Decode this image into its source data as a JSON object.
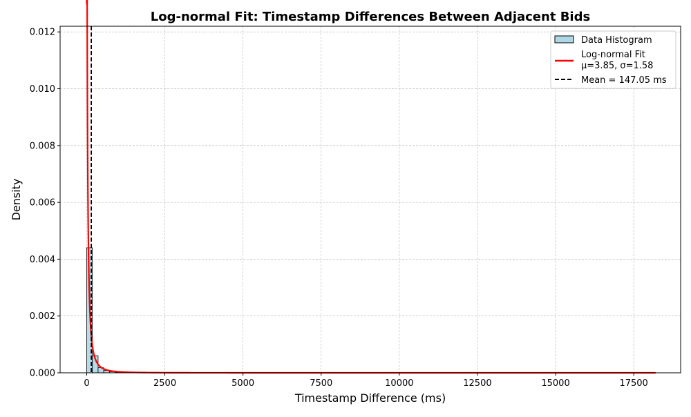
{
  "chart_data": {
    "type": "histogram",
    "title": "Log-normal Fit: Timestamp Differences Between Adjacent Bids",
    "xlabel": "Timestamp Difference (ms)",
    "ylabel": "Density",
    "xlim": [
      -850,
      19000
    ],
    "ylim": [
      0,
      0.0122
    ],
    "xticks": [
      0,
      2500,
      5000,
      7500,
      10000,
      12500,
      15000,
      17500
    ],
    "yticks": [
      0.0,
      0.002,
      0.004,
      0.006,
      0.008,
      0.01,
      0.012
    ],
    "xtick_labels": [
      "0",
      "2500",
      "5000",
      "7500",
      "10000",
      "12500",
      "15000",
      "17500"
    ],
    "ytick_labels": [
      "0.000",
      "0.002",
      "0.004",
      "0.006",
      "0.008",
      "0.010",
      "0.012"
    ],
    "grid": true,
    "legend_position": "top-right",
    "histogram": {
      "name": "Data Histogram",
      "bin_width": 182,
      "bins_start": 0,
      "densities": [
        0.0044,
        0.0006,
        0.00018,
        8e-05,
        4e-05,
        2e-05,
        1e-05
      ],
      "face_color": "#add8e6",
      "edge_color": "#000000"
    },
    "fit": {
      "name": "Log-normal Fit",
      "params_label": "μ=3.85, σ=1.58",
      "mu": 3.85,
      "sigma": 1.58,
      "x_range": [
        1,
        18200
      ],
      "color": "#ff0000"
    },
    "mean_line": {
      "name": "Mean = 147.05 ms",
      "value": 147.05,
      "color": "#000000"
    }
  }
}
